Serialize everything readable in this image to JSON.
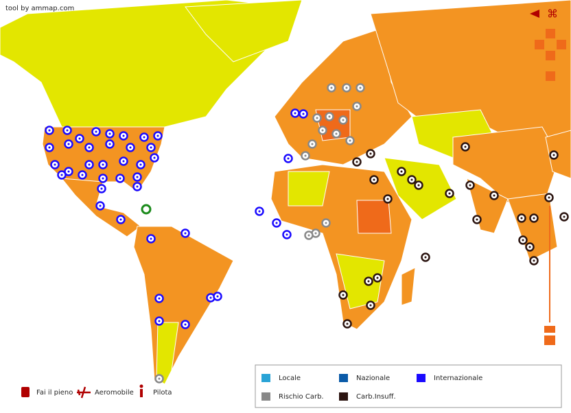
{
  "header": {
    "credit": "tool by ammap.com"
  },
  "legend": {
    "items": [
      {
        "label": "Locale",
        "color": "#29a3d6"
      },
      {
        "label": "Nazionale",
        "color": "#0a5aa8"
      },
      {
        "label": "Internazionale",
        "color": "#1a0aff"
      },
      {
        "label": "Rischio Carb.",
        "color": "#888888"
      },
      {
        "label": "Carb.Insuff.",
        "color": "#2b1410"
      }
    ]
  },
  "tools": {
    "items": [
      {
        "label": "Fai il pieno"
      },
      {
        "label": "Aeromobile"
      },
      {
        "label": "Pilota"
      }
    ]
  }
}
